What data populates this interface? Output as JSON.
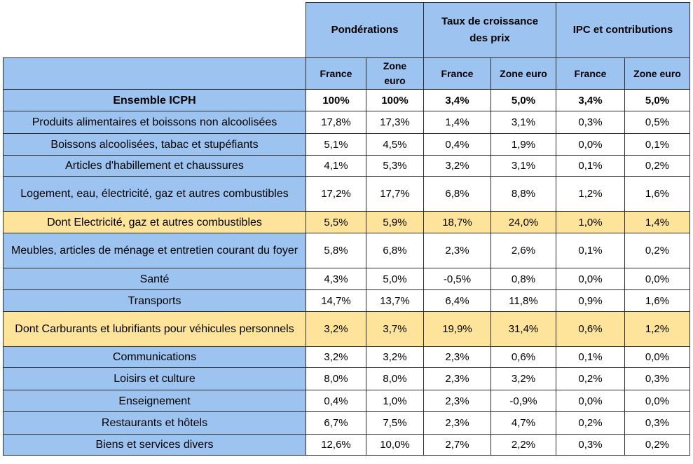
{
  "header": {
    "groups": [
      "Pondérations",
      "Taux de croissance des prix",
      "IPC et contributions"
    ],
    "subheaders": [
      "France",
      "Zone euro",
      "France",
      "Zone euro",
      "France",
      "Zone euro"
    ]
  },
  "colors": {
    "header_blue": "#9dc3f0",
    "highlight_yellow": "#fde49a",
    "border": "#2b2b2b"
  },
  "rows": [
    {
      "label": "Ensemble ICPH",
      "values": [
        "100%",
        "100%",
        "3,4%",
        "5,0%",
        "3,4%",
        "5,0%"
      ],
      "bold": true,
      "highlight": false
    },
    {
      "label": "Produits alimentaires et boissons non alcoolisées",
      "values": [
        "17,8%",
        "17,3%",
        "1,4%",
        "3,1%",
        "0,3%",
        "0,5%"
      ],
      "bold": false,
      "highlight": false
    },
    {
      "label": "Boissons alcoolisées, tabac et stupéfiants",
      "values": [
        "5,1%",
        "4,5%",
        "0,4%",
        "1,9%",
        "0,0%",
        "0,1%"
      ],
      "bold": false,
      "highlight": false
    },
    {
      "label": "Articles d'habillement et chaussures",
      "values": [
        "4,1%",
        "5,3%",
        "3,2%",
        "3,1%",
        "0,1%",
        "0,2%"
      ],
      "bold": false,
      "highlight": false
    },
    {
      "label": "Logement, eau, électricité, gaz et autres combustibles",
      "values": [
        "17,2%",
        "17,7%",
        "6,8%",
        "8,8%",
        "1,2%",
        "1,6%"
      ],
      "bold": false,
      "highlight": false
    },
    {
      "label": "Dont Electricité, gaz et autres combustibles",
      "values": [
        "5,5%",
        "5,9%",
        "18,7%",
        "24,0%",
        "1,0%",
        "1,4%"
      ],
      "bold": false,
      "highlight": true
    },
    {
      "label": "Meubles, articles de ménage et entretien courant du foyer",
      "values": [
        "5,8%",
        "6,8%",
        "2,3%",
        "2,6%",
        "0,1%",
        "0,2%"
      ],
      "bold": false,
      "highlight": false
    },
    {
      "label": "Santé",
      "values": [
        "4,3%",
        "5,0%",
        "-0,5%",
        "0,8%",
        "0,0%",
        "0,0%"
      ],
      "bold": false,
      "highlight": false
    },
    {
      "label": "Transports",
      "values": [
        "14,7%",
        "13,7%",
        "6,4%",
        "11,8%",
        "0,9%",
        "1,6%"
      ],
      "bold": false,
      "highlight": false
    },
    {
      "label": "Dont Carburants et lubrifiants pour véhicules personnels",
      "values": [
        "3,2%",
        "3,7%",
        "19,9%",
        "31,4%",
        "0,6%",
        "1,2%"
      ],
      "bold": false,
      "highlight": true
    },
    {
      "label": "Communications",
      "values": [
        "3,2%",
        "3,2%",
        "2,3%",
        "0,6%",
        "0,1%",
        "0,0%"
      ],
      "bold": false,
      "highlight": false
    },
    {
      "label": "Loisirs et culture",
      "values": [
        "8,0%",
        "8,0%",
        "2,3%",
        "3,2%",
        "0,2%",
        "0,3%"
      ],
      "bold": false,
      "highlight": false
    },
    {
      "label": "Enseignement",
      "values": [
        "0,4%",
        "1,0%",
        "2,3%",
        "-0,9%",
        "0,0%",
        "0,0%"
      ],
      "bold": false,
      "highlight": false
    },
    {
      "label": "Restaurants et hôtels",
      "values": [
        "6,7%",
        "7,5%",
        "2,3%",
        "4,7%",
        "0,2%",
        "0,3%"
      ],
      "bold": false,
      "highlight": false
    },
    {
      "label": "Biens et services divers",
      "values": [
        "12,6%",
        "10,0%",
        "2,7%",
        "2,2%",
        "0,3%",
        "0,2%"
      ],
      "bold": false,
      "highlight": false
    }
  ]
}
